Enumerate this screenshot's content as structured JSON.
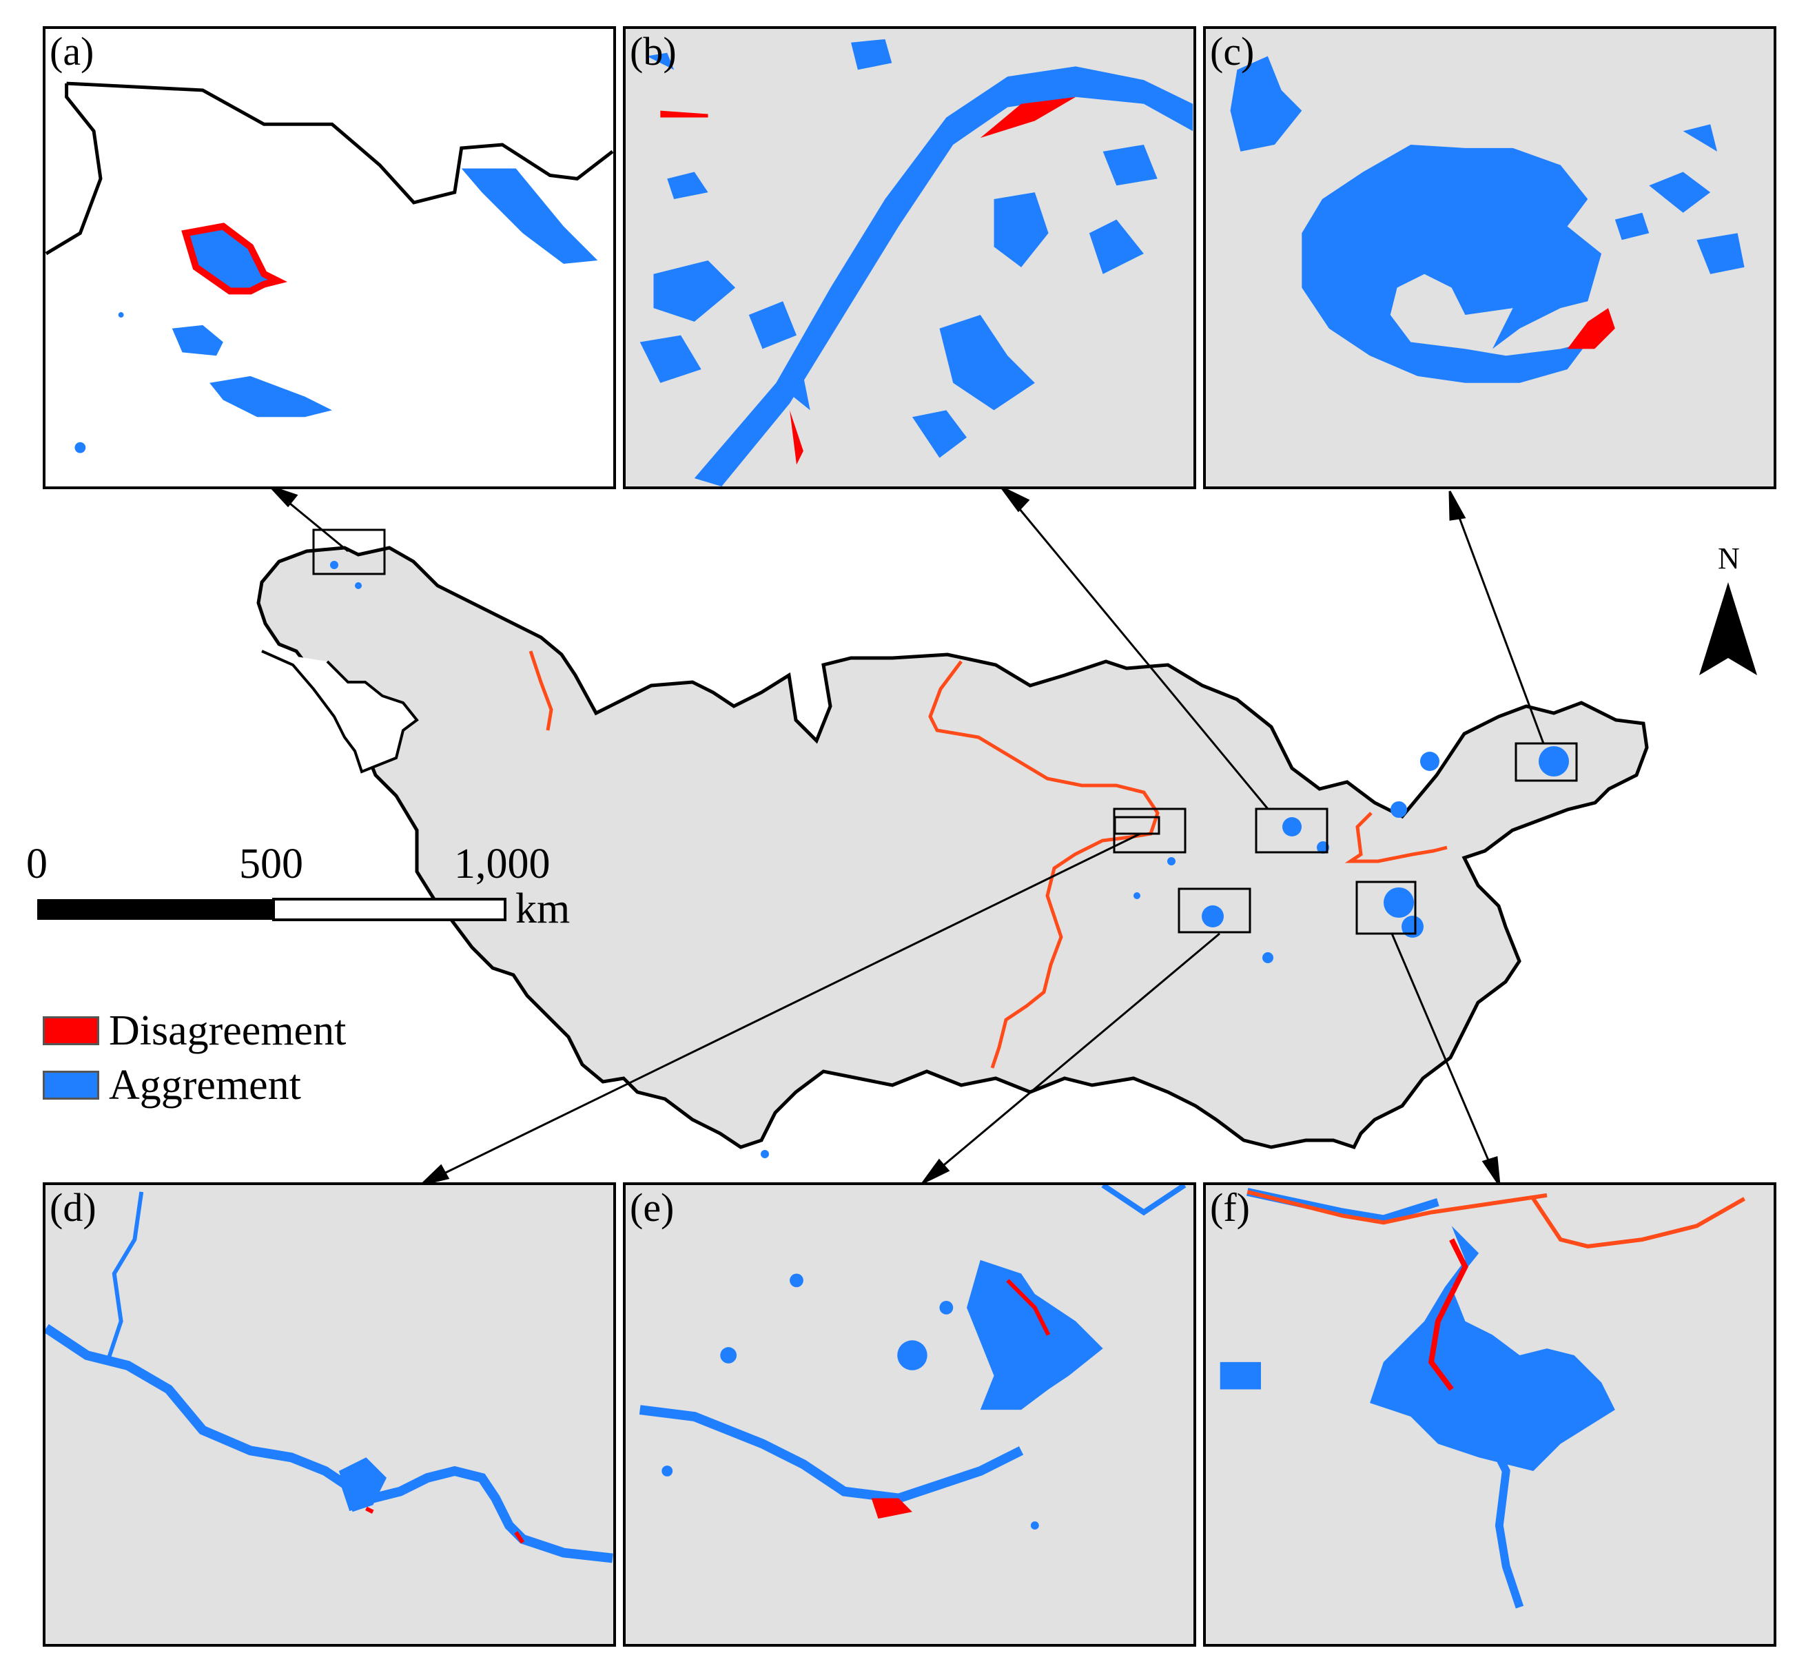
{
  "panels": [
    {
      "id": "a",
      "label": "(a)"
    },
    {
      "id": "b",
      "label": "(b)"
    },
    {
      "id": "c",
      "label": "(c)"
    },
    {
      "id": "d",
      "label": "(d)"
    },
    {
      "id": "e",
      "label": "(e)"
    },
    {
      "id": "f",
      "label": "(f)"
    }
  ],
  "scale_bar": {
    "ticks": [
      "0",
      "500",
      "1,000"
    ],
    "unit": "km"
  },
  "legend": [
    {
      "label": "Disagreement",
      "color": "#ff0000"
    },
    {
      "label": "Aggrement",
      "color": "#1f7fff"
    }
  ],
  "north_arrow": {
    "label": "N"
  },
  "colors": {
    "agreement": "#1f7fff",
    "disagreement": "#ff0000",
    "background": "#e1e1e1",
    "boundary": "#000000",
    "sub_boundary": "#ff4a1a"
  }
}
